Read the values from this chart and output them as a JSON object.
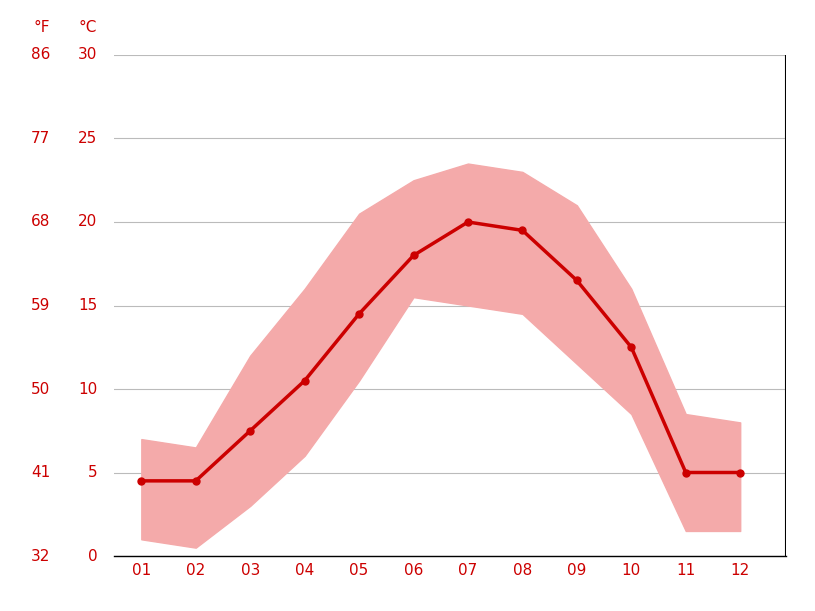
{
  "months": [
    1,
    2,
    3,
    4,
    5,
    6,
    7,
    8,
    9,
    10,
    11,
    12
  ],
  "month_labels": [
    "01",
    "02",
    "03",
    "04",
    "05",
    "06",
    "07",
    "08",
    "09",
    "10",
    "11",
    "12"
  ],
  "temp_mean": [
    4.5,
    4.5,
    7.5,
    10.5,
    14.5,
    18.0,
    20.0,
    19.5,
    16.5,
    12.5,
    5.0,
    5.0
  ],
  "temp_max": [
    7.0,
    6.5,
    12.0,
    16.0,
    20.5,
    22.5,
    23.5,
    23.0,
    21.0,
    16.0,
    8.5,
    8.0
  ],
  "temp_min": [
    1.0,
    0.5,
    3.0,
    6.0,
    10.5,
    15.5,
    15.0,
    14.5,
    11.5,
    8.5,
    1.5,
    1.5
  ],
  "ylim": [
    0,
    30
  ],
  "yticks_c": [
    0,
    5,
    10,
    15,
    20,
    25,
    30
  ],
  "yticks_f": [
    32,
    41,
    50,
    59,
    68,
    77,
    86
  ],
  "line_color": "#cc0000",
  "fill_color": "#f4aaaa",
  "grid_color": "#bbbbbb",
  "axis_color": "#cc0000",
  "background_color": "#ffffff",
  "fig_width": 8.15,
  "fig_height": 6.11,
  "dpi": 100
}
